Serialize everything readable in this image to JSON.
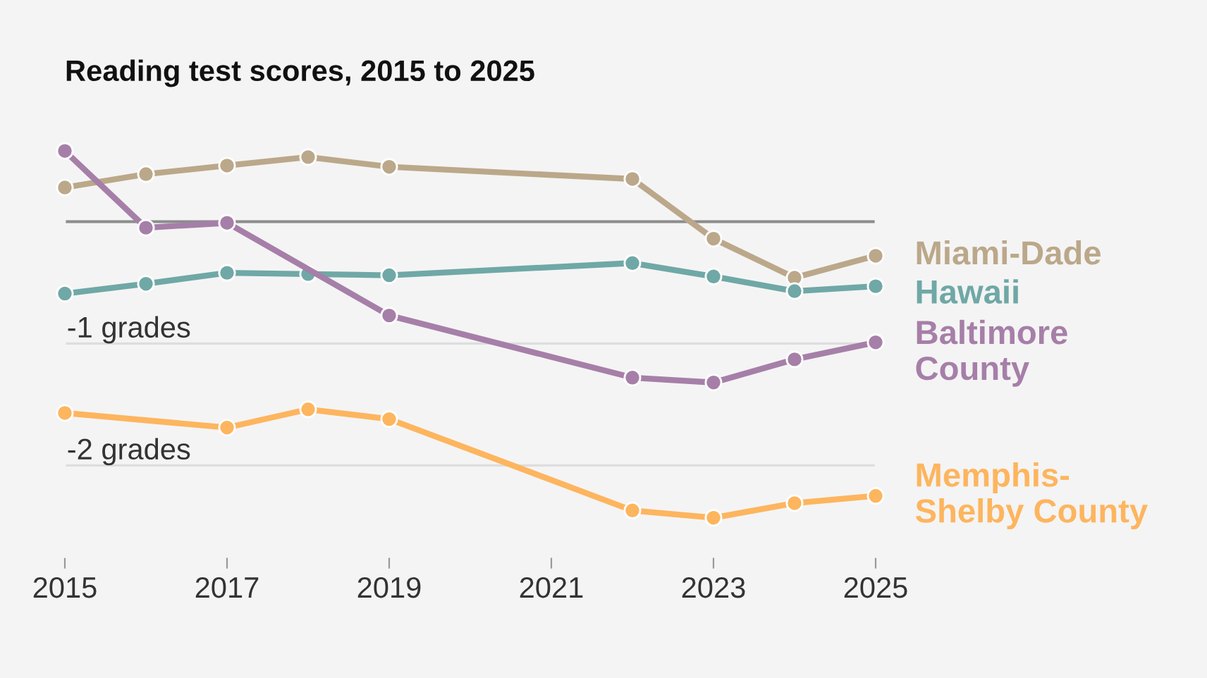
{
  "chart_data": {
    "type": "line",
    "title": "Reading test scores, 2015 to 2025",
    "xlim": [
      2015,
      2025
    ],
    "xticks": [
      2015,
      2017,
      2019,
      2021,
      2023,
      2025
    ],
    "ylim": [
      -2.75,
      0.72
    ],
    "yticks": [
      {
        "value": 0,
        "label": null
      },
      {
        "value": -1,
        "label": "-1 grades"
      },
      {
        "value": -2,
        "label": "-2 grades"
      }
    ],
    "grid": "y",
    "marker": "circle",
    "line_style": "solid",
    "legend": false,
    "ref_lines": [
      {
        "axis": "y",
        "value": 0,
        "color": "#8c8c8c"
      }
    ],
    "series": [
      {
        "name": "Miami-Dade",
        "color": "#bba88a",
        "x": [
          2015,
          2016,
          2017,
          2018,
          2019,
          2022,
          2023,
          2024,
          2025
        ],
        "values": [
          0.28,
          0.39,
          0.46,
          0.53,
          0.45,
          0.35,
          -0.14,
          -0.46,
          -0.28
        ]
      },
      {
        "name": "Hawaii",
        "color": "#6fa8a6",
        "x": [
          2015,
          2016,
          2017,
          2018,
          2019,
          2022,
          2023,
          2024,
          2025
        ],
        "values": [
          -0.59,
          -0.51,
          -0.42,
          -0.43,
          -0.44,
          -0.34,
          -0.45,
          -0.57,
          -0.53
        ]
      },
      {
        "name": "Baltimore\nCounty",
        "color": "#a67fa8",
        "x": [
          2015,
          2016,
          2017,
          2019,
          2022,
          2023,
          2024,
          2025
        ],
        "values": [
          0.58,
          -0.05,
          -0.01,
          -0.77,
          -1.28,
          -1.32,
          -1.13,
          -0.99
        ]
      },
      {
        "name": "Memphis-\nShelby County",
        "color": "#fdb55e",
        "x": [
          2015,
          2017,
          2018,
          2019,
          2022,
          2023,
          2024,
          2025
        ],
        "values": [
          -1.57,
          -1.69,
          -1.54,
          -1.62,
          -2.37,
          -2.43,
          -2.31,
          -2.25
        ]
      }
    ]
  }
}
